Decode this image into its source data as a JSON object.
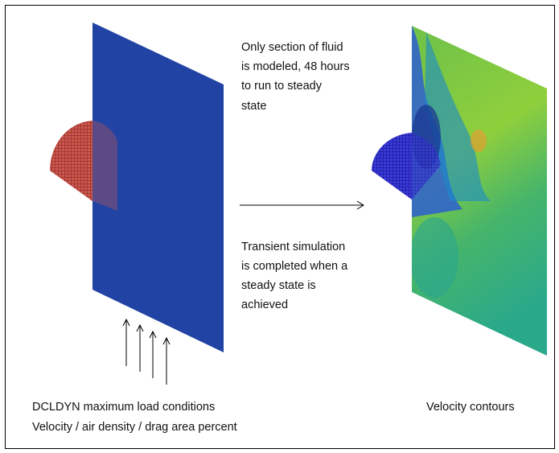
{
  "notes": {
    "fluid_section": [
      "Only section of fluid",
      "is modeled, 48 hours",
      "to run to steady",
      "state"
    ],
    "transient": [
      "Transient simulation",
      "is completed when a",
      "steady state is",
      "achieved"
    ]
  },
  "captions": {
    "load_conditions": [
      "DCLDYN maximum load conditions",
      "Velocity / air density / drag area percent"
    ],
    "velocity_contours": "Velocity contours"
  }
}
